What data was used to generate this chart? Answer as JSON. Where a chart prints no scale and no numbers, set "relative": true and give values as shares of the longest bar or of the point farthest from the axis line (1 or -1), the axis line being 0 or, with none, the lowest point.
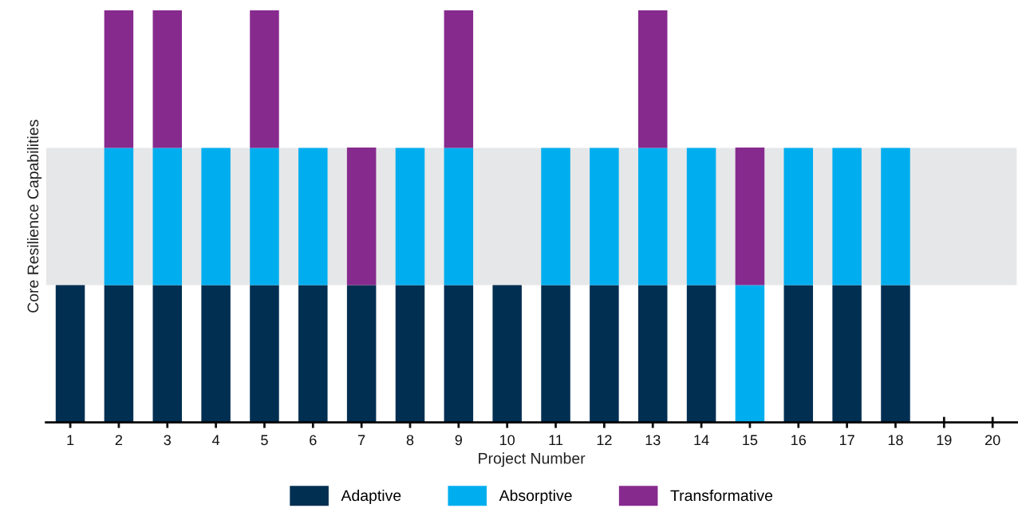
{
  "chart_data": {
    "type": "bar",
    "stacked": true,
    "relative": true,
    "xlabel": "Project Number",
    "ylabel": "Core Resilience Capabilities",
    "categories": [
      "1",
      "2",
      "3",
      "4",
      "5",
      "6",
      "7",
      "8",
      "9",
      "10",
      "11",
      "12",
      "13",
      "14",
      "15",
      "16",
      "17",
      "18",
      "19",
      "20"
    ],
    "series": [
      {
        "name": "Adaptive",
        "color": "#002f52",
        "values": [
          0.333,
          0.333,
          0.333,
          0.333,
          0.333,
          0.333,
          0.333,
          0.333,
          0.333,
          0.333,
          0.333,
          0.333,
          0.333,
          0.333,
          null,
          0.333,
          0.333,
          0.333,
          null,
          null
        ]
      },
      {
        "name": "Absorptive",
        "color": "#00aeef",
        "values": [
          null,
          0.333,
          0.333,
          0.333,
          0.333,
          0.333,
          null,
          0.333,
          0.333,
          null,
          0.333,
          0.333,
          0.333,
          0.333,
          0.333,
          0.333,
          0.333,
          0.333,
          null,
          null
        ]
      },
      {
        "name": "Transformative",
        "color": "#872a8e",
        "values": [
          null,
          0.334,
          0.334,
          null,
          0.334,
          null,
          0.334,
          null,
          0.334,
          null,
          null,
          null,
          0.334,
          null,
          0.334,
          null,
          null,
          null,
          null,
          null
        ]
      }
    ],
    "bands": [
      {
        "axis": "y",
        "from": 0.333,
        "to": 0.666,
        "color": "#e6e7e8"
      }
    ],
    "legend": "bottom",
    "grid": false
  }
}
